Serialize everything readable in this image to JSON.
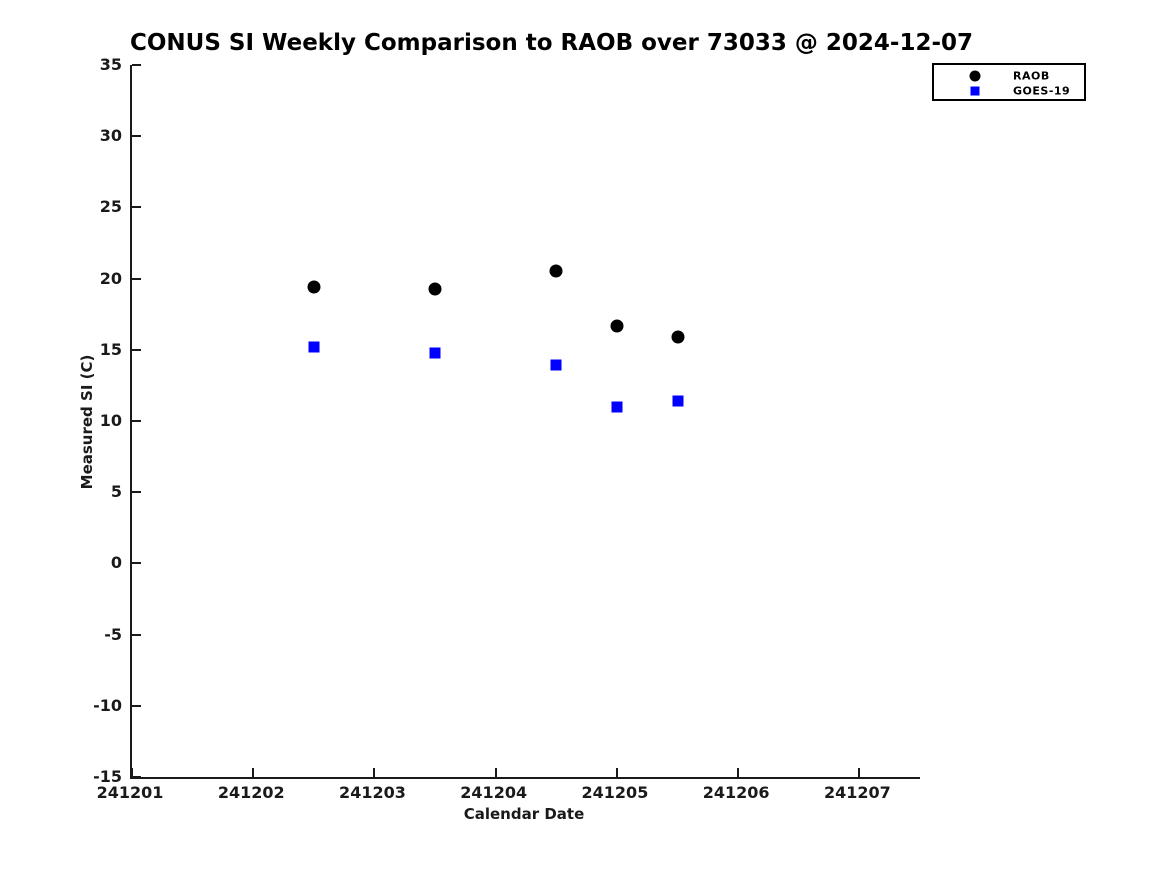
{
  "chart_data": {
    "type": "scatter",
    "title": "CONUS SI Weekly Comparison to RAOB over 73033 @ 2024-12-07",
    "xlabel": "Calendar Date",
    "ylabel": "Measured SI (C)",
    "xlim": [
      241201,
      241207.5
    ],
    "ylim": [
      -15,
      35
    ],
    "x_ticks": [
      "241201",
      "241202",
      "241203",
      "241204",
      "241205",
      "241206",
      "241207"
    ],
    "y_ticks": [
      "35",
      "30",
      "25",
      "20",
      "15",
      "10",
      "5",
      "0",
      "-5",
      "-10",
      "-15"
    ],
    "grid": false,
    "legend_position": "top-right",
    "background_color": "#ffffff",
    "axis_color": "#1a1a1a",
    "series": [
      {
        "name": "RAOB",
        "marker": "circle",
        "color": "#000000",
        "points": [
          [
            241202.5,
            19.4
          ],
          [
            241203.5,
            19.3
          ],
          [
            241204.5,
            20.5
          ],
          [
            241205.0,
            16.7
          ],
          [
            241205.5,
            15.9
          ]
        ]
      },
      {
        "name": "GOES-19",
        "marker": "square",
        "color": "#0000ff",
        "points": [
          [
            241202.5,
            15.2
          ],
          [
            241203.5,
            14.8
          ],
          [
            241204.5,
            13.9
          ],
          [
            241205.0,
            11.0
          ],
          [
            241205.5,
            11.4
          ]
        ]
      }
    ]
  }
}
